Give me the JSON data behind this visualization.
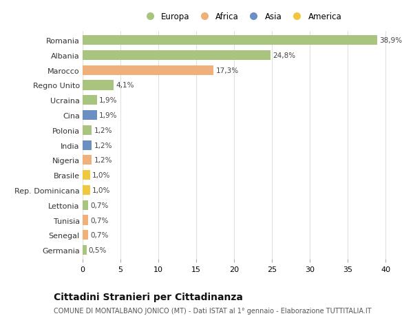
{
  "countries": [
    "Romania",
    "Albania",
    "Marocco",
    "Regno Unito",
    "Ucraina",
    "Cina",
    "Polonia",
    "India",
    "Nigeria",
    "Brasile",
    "Rep. Dominicana",
    "Lettonia",
    "Tunisia",
    "Senegal",
    "Germania"
  ],
  "values": [
    38.9,
    24.8,
    17.3,
    4.1,
    1.9,
    1.9,
    1.2,
    1.2,
    1.2,
    1.0,
    1.0,
    0.7,
    0.7,
    0.7,
    0.5
  ],
  "labels": [
    "38,9%",
    "24,8%",
    "17,3%",
    "4,1%",
    "1,9%",
    "1,9%",
    "1,2%",
    "1,2%",
    "1,2%",
    "1,0%",
    "1,0%",
    "0,7%",
    "0,7%",
    "0,7%",
    "0,5%"
  ],
  "continents": [
    "Europa",
    "Europa",
    "Africa",
    "Europa",
    "Europa",
    "Asia",
    "Europa",
    "Asia",
    "Africa",
    "America",
    "America",
    "Europa",
    "Africa",
    "Africa",
    "Europa"
  ],
  "continent_colors": {
    "Europa": "#a8c47e",
    "Africa": "#f0b07a",
    "Asia": "#6a8fc0",
    "America": "#f0c840"
  },
  "legend_order": [
    "Europa",
    "Africa",
    "Asia",
    "America"
  ],
  "title": "Cittadini Stranieri per Cittadinanza",
  "subtitle": "COMUNE DI MONTALBANO JONICO (MT) - Dati ISTAT al 1° gennaio - Elaborazione TUTTITALIA.IT",
  "xlim": [
    0,
    42
  ],
  "xticks": [
    0,
    5,
    10,
    15,
    20,
    25,
    30,
    35,
    40
  ],
  "bg_color": "#ffffff",
  "grid_color": "#e0e0e0",
  "bar_height": 0.65,
  "label_fontsize": 7.5,
  "ytick_fontsize": 8,
  "xtick_fontsize": 8,
  "title_fontsize": 10,
  "subtitle_fontsize": 7,
  "legend_fontsize": 8.5
}
